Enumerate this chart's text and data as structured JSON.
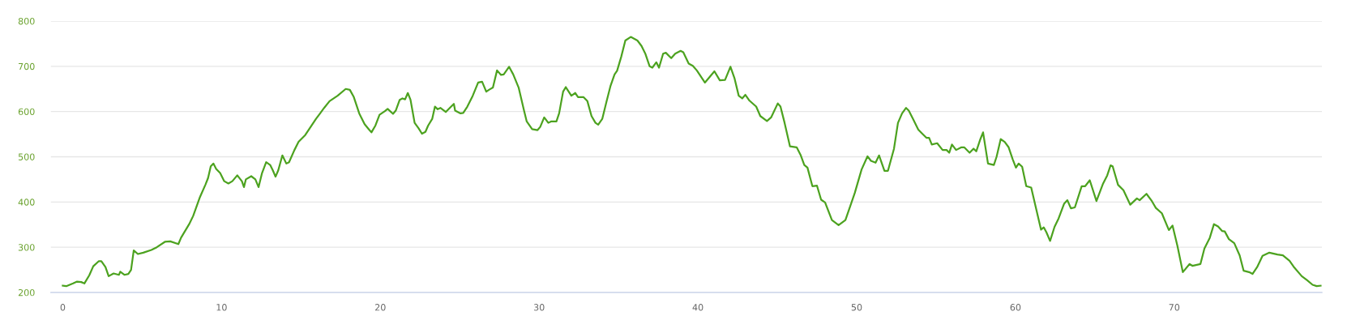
{
  "chart_data": {
    "type": "line",
    "x": [
      0,
      0.22,
      0.65,
      0.9,
      1.16,
      1.36,
      1.67,
      1.92,
      2.26,
      2.43,
      2.69,
      2.89,
      3.2,
      3.54,
      3.62,
      3.88,
      4.13,
      4.3,
      4.47,
      4.73,
      5.07,
      5.58,
      5.92,
      6.43,
      6.77,
      7.28,
      7.45,
      7.96,
      8.21,
      8.64,
      8.98,
      9.15,
      9.32,
      9.49,
      9.66,
      9.91,
      10.17,
      10.43,
      10.68,
      10.99,
      11.28,
      11.41,
      11.53,
      11.87,
      12.13,
      12.33,
      12.55,
      12.81,
      13.06,
      13.23,
      13.4,
      13.57,
      13.83,
      14.08,
      14.25,
      14.59,
      14.85,
      15.27,
      15.61,
      15.95,
      16.21,
      16.46,
      16.8,
      17.31,
      17.82,
      18.08,
      18.33,
      18.67,
      19.01,
      19.27,
      19.44,
      19.69,
      19.95,
      20.29,
      20.46,
      20.8,
      20.97,
      21.22,
      21.39,
      21.56,
      21.73,
      21.9,
      22.16,
      22.41,
      22.62,
      22.84,
      23.01,
      23.27,
      23.44,
      23.61,
      23.78,
      24.12,
      24.46,
      24.63,
      24.71,
      25.05,
      25.22,
      25.48,
      25.82,
      26.16,
      26.41,
      26.67,
      26.84,
      27.09,
      27.35,
      27.6,
      27.77,
      28.11,
      28.37,
      28.71,
      29.05,
      29.22,
      29.56,
      29.9,
      30.07,
      30.32,
      30.58,
      30.75,
      31.09,
      31.26,
      31.51,
      31.68,
      32.03,
      32.28,
      32.45,
      32.79,
      33.04,
      33.3,
      33.55,
      33.72,
      33.98,
      34.23,
      34.49,
      34.75,
      34.91,
      35.17,
      35.43,
      35.77,
      36.19,
      36.45,
      36.7,
      36.96,
      37.13,
      37.38,
      37.55,
      37.81,
      37.98,
      38.32,
      38.57,
      38.91,
      39.08,
      39.42,
      39.68,
      39.93,
      40.44,
      41.04,
      41.38,
      41.71,
      42.05,
      42.31,
      42.57,
      42.79,
      42.99,
      43.25,
      43.67,
      43.93,
      44.35,
      44.61,
      45.03,
      45.2,
      45.46,
      45.8,
      46.22,
      46.48,
      46.7,
      46.9,
      47.21,
      47.5,
      47.76,
      48.01,
      48.44,
      48.86,
      49.29,
      49.88,
      50.31,
      50.68,
      50.9,
      51.19,
      51.41,
      51.75,
      51.97,
      52.35,
      52.6,
      52.86,
      53.11,
      53.28,
      53.54,
      53.88,
      54.13,
      54.39,
      54.56,
      54.73,
      55.07,
      55.41,
      55.66,
      55.83,
      56.0,
      56.26,
      56.6,
      56.77,
      57.11,
      57.36,
      57.53,
      57.79,
      57.96,
      58.27,
      58.64,
      58.81,
      59.07,
      59.32,
      59.57,
      59.83,
      60.03,
      60.2,
      60.42,
      60.68,
      60.99,
      61.27,
      61.61,
      61.78,
      61.95,
      62.18,
      62.46,
      62.72,
      63.06,
      63.27,
      63.49,
      63.74,
      64.17,
      64.39,
      64.68,
      65.1,
      65.52,
      65.78,
      65.99,
      66.12,
      66.46,
      66.8,
      67.23,
      67.65,
      67.82,
      68.25,
      68.59,
      68.84,
      69.22,
      69.66,
      69.89,
      70.2,
      70.54,
      70.97,
      71.14,
      71.65,
      71.9,
      72.24,
      72.5,
      72.76,
      73.01,
      73.18,
      73.44,
      73.78,
      74.12,
      74.37,
      74.71,
      74.93,
      75.22,
      75.56,
      75.99,
      76.5,
      76.84,
      77.26,
      77.52,
      78.03,
      78.37,
      78.71,
      78.97,
      79.22
    ],
    "values": [
      215,
      214,
      220,
      224,
      223,
      220,
      238,
      258,
      269,
      269,
      256,
      236,
      242,
      239,
      246,
      239,
      241,
      250,
      293,
      285,
      288,
      294,
      300,
      312,
      313,
      307,
      321,
      351,
      369,
      411,
      438,
      453,
      479,
      485,
      473,
      464,
      446,
      441,
      446,
      459,
      446,
      433,
      450,
      457,
      450,
      433,
      464,
      488,
      482,
      470,
      456,
      470,
      503,
      485,
      488,
      515,
      533,
      548,
      566,
      584,
      596,
      608,
      623,
      635,
      650,
      648,
      632,
      596,
      572,
      561,
      554,
      569,
      593,
      601,
      606,
      595,
      602,
      626,
      629,
      627,
      641,
      626,
      575,
      563,
      551,
      555,
      569,
      584,
      611,
      605,
      608,
      599,
      611,
      617,
      602,
      596,
      597,
      611,
      635,
      664,
      666,
      644,
      648,
      653,
      691,
      681,
      682,
      699,
      682,
      653,
      602,
      578,
      561,
      559,
      566,
      587,
      575,
      578,
      578,
      596,
      644,
      654,
      635,
      641,
      632,
      632,
      623,
      590,
      575,
      571,
      584,
      620,
      656,
      682,
      690,
      721,
      757,
      765,
      757,
      745,
      727,
      700,
      697,
      709,
      697,
      728,
      730,
      718,
      728,
      734,
      731,
      706,
      701,
      691,
      664,
      689,
      669,
      670,
      699,
      673,
      635,
      629,
      637,
      624,
      611,
      590,
      579,
      587,
      618,
      611,
      575,
      523,
      521,
      503,
      482,
      476,
      435,
      436,
      405,
      399,
      360,
      349,
      360,
      420,
      472,
      501,
      491,
      487,
      503,
      469,
      469,
      518,
      575,
      596,
      608,
      602,
      584,
      560,
      551,
      542,
      542,
      527,
      530,
      515,
      515,
      509,
      527,
      515,
      521,
      521,
      509,
      518,
      512,
      539,
      554,
      485,
      482,
      500,
      539,
      533,
      521,
      494,
      476,
      485,
      478,
      435,
      432,
      390,
      339,
      344,
      333,
      314,
      345,
      364,
      396,
      404,
      386,
      388,
      435,
      435,
      448,
      402,
      441,
      459,
      481,
      479,
      438,
      426,
      394,
      408,
      404,
      418,
      402,
      387,
      375,
      338,
      348,
      303,
      245,
      263,
      259,
      263,
      297,
      321,
      351,
      346,
      336,
      335,
      318,
      309,
      282,
      248,
      245,
      241,
      256,
      281,
      288,
      284,
      282,
      270,
      257,
      236,
      227,
      217,
      214,
      215
    ],
    "color": "#4ca21f",
    "xlim": [
      -0.75,
      79.3
    ],
    "ylim": [
      200,
      800
    ],
    "xticks": [
      0,
      10,
      20,
      30,
      40,
      50,
      60,
      70
    ],
    "yticks": [
      200,
      300,
      400,
      500,
      600,
      700,
      800
    ],
    "grid": "y",
    "marker": "none",
    "line_style": "solid"
  }
}
